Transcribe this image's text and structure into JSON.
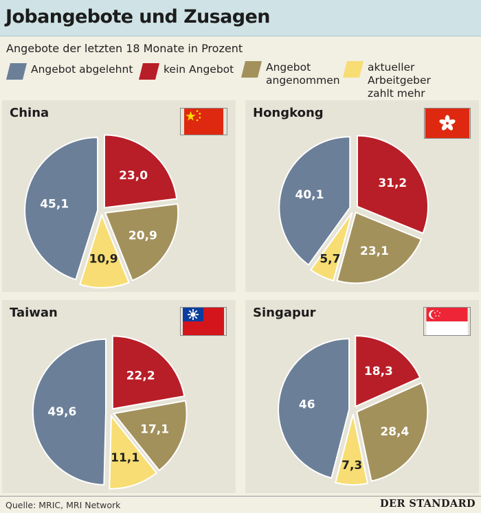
{
  "title": "Jobangebote und Zusagen",
  "subtitle": "Angebote der letzten 18 Monate in Prozent",
  "legend": [
    {
      "label": "Angebot abgelehnt",
      "color": "#6b7f98"
    },
    {
      "label": "kein Angebot",
      "color": "#b81e27"
    },
    {
      "label": "Angebot\nangenommen",
      "color": "#a3915c"
    },
    {
      "label": "aktueller Arbeitgeber\nzahlt mehr",
      "color": "#f7dd73"
    }
  ],
  "source": "Quelle: MRIC, MRI Network",
  "brand": "DER STANDARD",
  "chart_data": [
    {
      "type": "pie",
      "title": "China",
      "categories": [
        "kein Angebot",
        "Angebot angenommen",
        "aktueller Arbeitgeber zahlt mehr",
        "Angebot abgelehnt"
      ],
      "values": [
        23.0,
        20.9,
        10.9,
        45.1
      ],
      "labels": [
        "23,0",
        "20,9",
        "10,9",
        "45,1"
      ]
    },
    {
      "type": "pie",
      "title": "Hongkong",
      "categories": [
        "kein Angebot",
        "Angebot angenommen",
        "aktueller Arbeitgeber zahlt mehr",
        "Angebot abgelehnt"
      ],
      "values": [
        31.2,
        23.1,
        5.7,
        40.1
      ],
      "labels": [
        "31,2",
        "23,1",
        "5,7",
        "40,1"
      ]
    },
    {
      "type": "pie",
      "title": "Taiwan",
      "categories": [
        "kein Angebot",
        "Angebot angenommen",
        "aktueller Arbeitgeber zahlt mehr",
        "Angebot abgelehnt"
      ],
      "values": [
        22.2,
        17.1,
        11.1,
        49.6
      ],
      "labels": [
        "22,2",
        "17,1",
        "11,1",
        "49,6"
      ]
    },
    {
      "type": "pie",
      "title": "Singapur",
      "categories": [
        "kein Angebot",
        "Angebot angenommen",
        "aktueller Arbeitgeber zahlt mehr",
        "Angebot abgelehnt"
      ],
      "values": [
        18.3,
        28.4,
        7.3,
        46
      ],
      "labels": [
        "18,3",
        "28,4",
        "7,3",
        "46"
      ]
    }
  ]
}
